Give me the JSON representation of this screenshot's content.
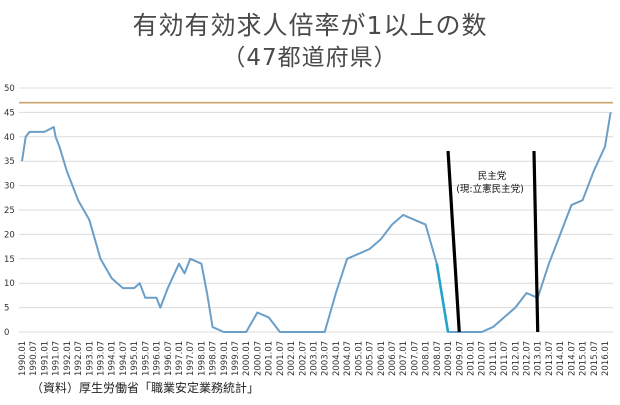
{
  "title": "有効有効求人倍率が1以上の数",
  "subtitle": "（47都道府県）",
  "source_note": "（資料）厚生労働省「職業安定業務統計」",
  "annotation": {
    "line1": "民主党",
    "line2": "(現:立憲民主党)"
  },
  "colors": {
    "line": "#6b9fc8",
    "highlight": "#23a3c9",
    "reference": "#c8a46e",
    "grid": "#dcdcdc",
    "marker": "#000000"
  },
  "chart_data": {
    "type": "line",
    "title": "有効有効求人倍率が1以上の数",
    "subtitle": "（47都道府県）",
    "xlabel": "",
    "ylabel": "",
    "ylim": [
      0,
      50
    ],
    "y_ticks": [
      0,
      5,
      10,
      15,
      20,
      25,
      30,
      35,
      40,
      45,
      50
    ],
    "grid": true,
    "x_tick_labels": [
      "1990.01",
      "1990.07",
      "1991.01",
      "1991.07",
      "1992.01",
      "1992.07",
      "1993.01",
      "1993.07",
      "1994.01",
      "1994.07",
      "1995.01",
      "1995.07",
      "1996.01",
      "1996.07",
      "1997.01",
      "1997.07",
      "1998.01",
      "1998.07",
      "1999.01",
      "1999.07",
      "2000.01",
      "2000.07",
      "2001.01",
      "2001.07",
      "2002.01",
      "2002.07",
      "2003.01",
      "2003.07",
      "2004.01",
      "2004.07",
      "2005.01",
      "2005.07",
      "2006.01",
      "2006.07",
      "2007.01",
      "2007.07",
      "2008.01",
      "2008.07",
      "2009.01",
      "2009.07",
      "2010.01",
      "2010.07",
      "2011.01",
      "2011.07",
      "2012.01",
      "2012.07",
      "2013.01",
      "2013.07",
      "2014.01",
      "2014.07",
      "2015.01",
      "2015.07",
      "2016.01"
    ],
    "reference_line": {
      "y": 47
    },
    "highlight_range": [
      "2008.07",
      "2009.01"
    ],
    "markers": [
      {
        "from": "2009.01",
        "to": "2009.07"
      },
      {
        "from": "2012.11",
        "to": "2013.01"
      }
    ],
    "series": [
      {
        "x": [
          "1990.01",
          "1990.03",
          "1990.05",
          "1990.07",
          "1991.01",
          "1991.06",
          "1991.07",
          "1991.09",
          "1992.01",
          "1992.04",
          "1992.07",
          "1993.01",
          "1993.04",
          "1993.07",
          "1994.01",
          "1994.04",
          "1994.07",
          "1995.01",
          "1995.04",
          "1995.07",
          "1996.01",
          "1996.03",
          "1996.07",
          "1997.01",
          "1997.04",
          "1997.07",
          "1998.01",
          "1998.04",
          "1998.07",
          "1999.01",
          "1999.07",
          "2000.01",
          "2000.07",
          "2001.01",
          "2001.07",
          "2002.01",
          "2002.07",
          "2003.01",
          "2003.07",
          "2004.01",
          "2004.07",
          "2005.01",
          "2005.07",
          "2006.01",
          "2006.07",
          "2007.01",
          "2007.07",
          "2008.01",
          "2008.07",
          "2009.01",
          "2009.07",
          "2010.01",
          "2010.07",
          "2011.01",
          "2011.07",
          "2012.01",
          "2012.07",
          "2013.01",
          "2013.07",
          "2014.01",
          "2014.07",
          "2015.01",
          "2015.07",
          "2016.01",
          "2016.04"
        ],
        "values": [
          35,
          40,
          41,
          41,
          41,
          42,
          40,
          38,
          33,
          30,
          27,
          23,
          19,
          15,
          11,
          10,
          9,
          9,
          10,
          7,
          7,
          5,
          9,
          14,
          12,
          15,
          14,
          8,
          1,
          0,
          0,
          0,
          4,
          3,
          0,
          0,
          0,
          0,
          0,
          8,
          15,
          16,
          17,
          19,
          22,
          24,
          23,
          22,
          14,
          0,
          0,
          0,
          0,
          1,
          3,
          5,
          8,
          7,
          14,
          20,
          26,
          27,
          33,
          38,
          45
        ]
      }
    ]
  }
}
